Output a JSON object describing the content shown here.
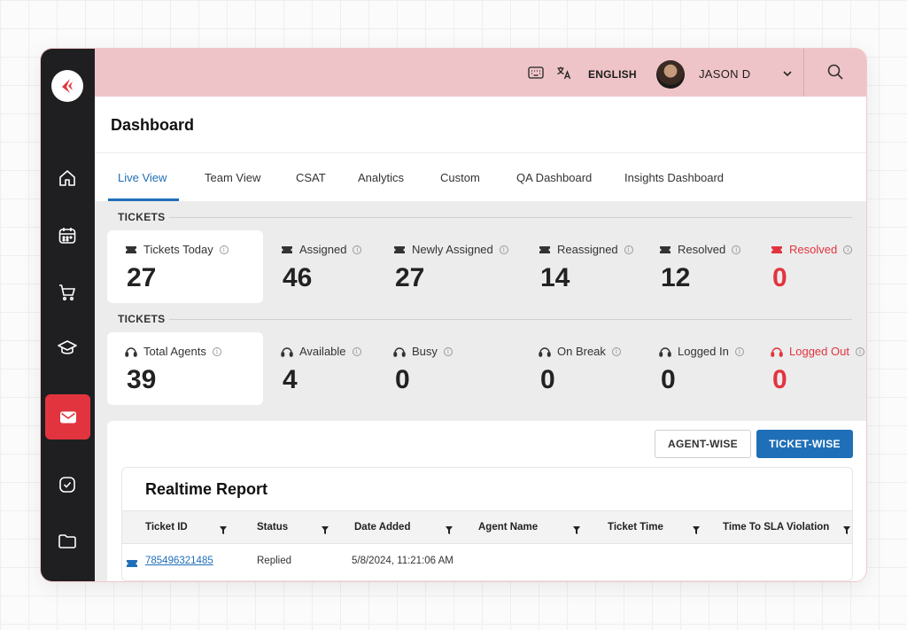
{
  "topbar": {
    "language": "ENGLISH",
    "user_name": "JASON D"
  },
  "header": {
    "title": "Dashboard"
  },
  "tabs": [
    {
      "label": "Live View",
      "active": true
    },
    {
      "label": "Team View"
    },
    {
      "label": "CSAT"
    },
    {
      "label": "Analytics"
    },
    {
      "label": "Custom"
    },
    {
      "label": "QA Dashboard"
    },
    {
      "label": "Insights Dashboard"
    }
  ],
  "tickets_section": {
    "label": "TICKETS",
    "stats": [
      {
        "label": "Tickets Today",
        "value": "27"
      },
      {
        "label": "Assigned",
        "value": "46"
      },
      {
        "label": "Newly Assigned",
        "value": "27"
      },
      {
        "label": "Reassigned",
        "value": "14"
      },
      {
        "label": "Resolved",
        "value": "12"
      },
      {
        "label": "Resolved",
        "value": "0",
        "highlight": "#e2343f"
      }
    ]
  },
  "agents_section": {
    "label": "TICKETS",
    "stats": [
      {
        "label": "Total Agents",
        "value": "39"
      },
      {
        "label": "Available",
        "value": "4"
      },
      {
        "label": "Busy",
        "value": "0"
      },
      {
        "label": "On Break",
        "value": "0"
      },
      {
        "label": "Logged In",
        "value": "0"
      },
      {
        "label": "Logged Out",
        "value": "0",
        "highlight": "#e2343f"
      }
    ]
  },
  "report": {
    "agent_wise_label": "AGENT-WISE",
    "ticket_wise_label": "TICKET-WISE",
    "title": "Realtime Report",
    "columns": [
      "Ticket ID",
      "Status",
      "Date Added",
      "Agent Name",
      "Ticket Time",
      "Time To SLA Violation"
    ],
    "rows": [
      {
        "ticket_id": "785496321485",
        "status": "Replied",
        "date_added": "5/8/2024, 11:21:06 AM",
        "agent_name": "",
        "ticket_time": "",
        "sla": ""
      }
    ]
  },
  "colors": {
    "accent_blue": "#1f6fb8",
    "brand_red": "#e2343f",
    "topbar_pink": "#efc4c8",
    "sidebar_dark": "#1f1f21"
  },
  "icons": {
    "sidebar": [
      "home-icon",
      "calendar-icon",
      "cart-icon",
      "graduation-cap-icon",
      "mail-icon",
      "check-circle-icon",
      "folder-icon"
    ],
    "topbar": [
      "keyboard-icon",
      "translate-icon",
      "chevron-down-icon",
      "search-icon"
    ]
  }
}
